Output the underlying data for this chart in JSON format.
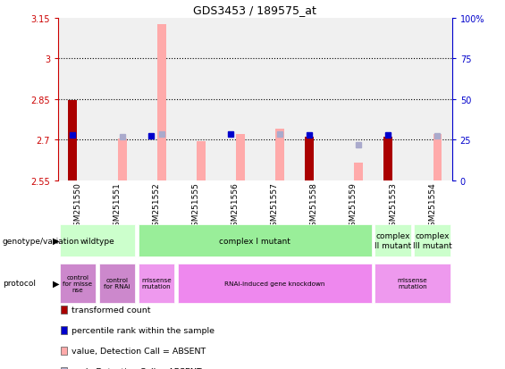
{
  "title": "GDS3453 / 189575_at",
  "samples": [
    "GSM251550",
    "GSM251551",
    "GSM251552",
    "GSM251555",
    "GSM251556",
    "GSM251557",
    "GSM251558",
    "GSM251559",
    "GSM251553",
    "GSM251554"
  ],
  "ylim_left": [
    2.55,
    3.15
  ],
  "ylim_right": [
    0,
    100
  ],
  "yticks_left": [
    2.55,
    2.7,
    2.85,
    3.0,
    3.15
  ],
  "yticks_right": [
    0,
    25,
    50,
    75,
    100
  ],
  "ytick_labels_left": [
    "2.55",
    "2.7",
    "2.85",
    "3",
    "3.15"
  ],
  "ytick_labels_right": [
    "0",
    "25",
    "50",
    "75",
    "100%"
  ],
  "hlines": [
    2.7,
    2.85,
    3.0
  ],
  "transformed_values": [
    2.845,
    null,
    null,
    null,
    null,
    null,
    2.71,
    null,
    2.71,
    null
  ],
  "absent_values": [
    null,
    2.705,
    3.125,
    2.695,
    2.72,
    2.74,
    null,
    2.615,
    null,
    2.72
  ],
  "rank_values": [
    28.0,
    null,
    27.5,
    null,
    28.5,
    null,
    28.0,
    null,
    28.0,
    null
  ],
  "rank_absent_values": [
    null,
    27.0,
    28.5,
    null,
    null,
    28.5,
    null,
    22.0,
    null,
    27.5
  ],
  "bar_color_red": "#aa0000",
  "bar_color_pink": "#ffaaaa",
  "rank_color_blue": "#0000cc",
  "rank_color_light_blue": "#aaaacc",
  "left_axis_color": "#cc0000",
  "right_axis_color": "#0000cc",
  "col_bg_color": "#cccccc",
  "genotype_labels": [
    {
      "text": "wildtype",
      "start": 0,
      "end": 2,
      "color": "#ccffcc"
    },
    {
      "text": "complex I mutant",
      "start": 2,
      "end": 8,
      "color": "#99ee99"
    },
    {
      "text": "complex\nII mutant",
      "start": 8,
      "end": 9,
      "color": "#ccffcc"
    },
    {
      "text": "complex\nIII mutant",
      "start": 9,
      "end": 10,
      "color": "#ccffcc"
    }
  ],
  "protocol_labels": [
    {
      "text": "control\nfor misse\nnse",
      "start": 0,
      "end": 1,
      "color": "#cc88cc"
    },
    {
      "text": "control\nfor RNAi",
      "start": 1,
      "end": 2,
      "color": "#cc88cc"
    },
    {
      "text": "missense\nmutation",
      "start": 2,
      "end": 3,
      "color": "#ee99ee"
    },
    {
      "text": "RNAi-induced gene knockdown",
      "start": 3,
      "end": 8,
      "color": "#ee88ee"
    },
    {
      "text": "missense\nmutation",
      "start": 8,
      "end": 10,
      "color": "#ee99ee"
    }
  ],
  "legend_items": [
    {
      "label": "transformed count",
      "color": "#aa0000"
    },
    {
      "label": "percentile rank within the sample",
      "color": "#0000cc"
    },
    {
      "label": "value, Detection Call = ABSENT",
      "color": "#ffaaaa"
    },
    {
      "label": "rank, Detection Call = ABSENT",
      "color": "#aaaacc"
    }
  ],
  "left_label": "genotype/variation",
  "protocol_label": "protocol"
}
